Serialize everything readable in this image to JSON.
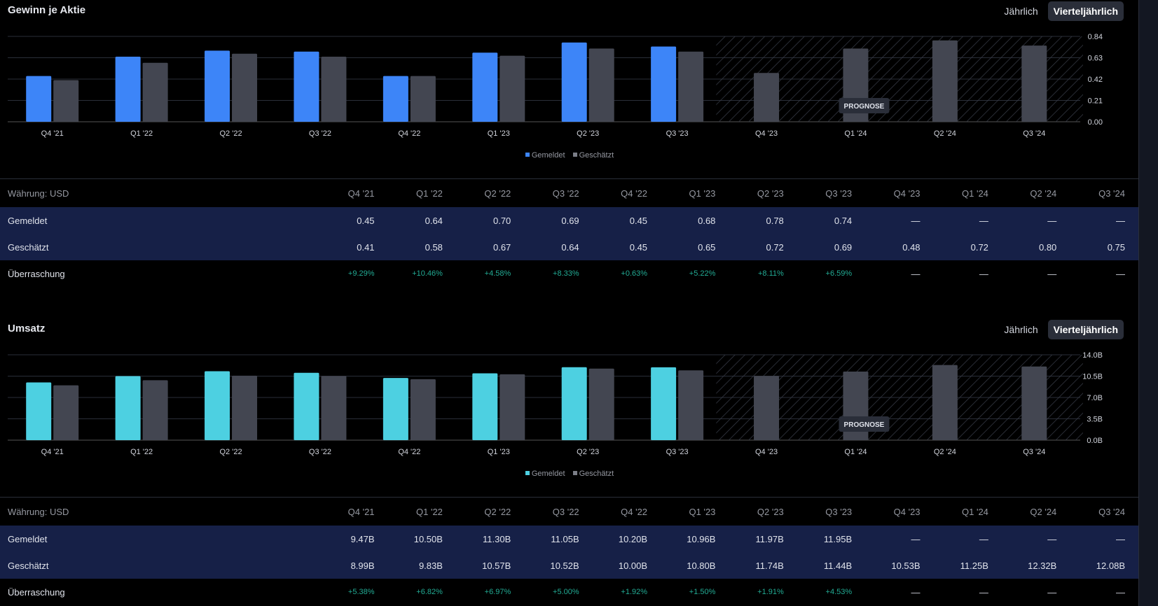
{
  "colors": {
    "reported_eps": "#3d85f8",
    "reported_rev": "#4dd0e1",
    "estimated": "#434651",
    "surprise": "#22ab94"
  },
  "common": {
    "periods": [
      "Q4 '21",
      "Q1 '22",
      "Q2 '22",
      "Q3 '22",
      "Q4 '22",
      "Q1 '23",
      "Q2 '23",
      "Q3 '23",
      "Q4 '23",
      "Q1 '24",
      "Q2 '24",
      "Q3 '24"
    ],
    "toggle_annual": "Jährlich",
    "toggle_quarterly": "Vierteljährlich",
    "legend_reported": "Gemeldet",
    "legend_estimated": "Geschätzt",
    "forecast_label": "PROGNOSE",
    "currency_label": "Währung: USD",
    "row_reported": "Gemeldet",
    "row_estimated": "Geschätzt",
    "row_surprise": "Überraschung"
  },
  "eps": {
    "title": "Gewinn je Aktie",
    "table": {
      "reported": [
        "0.45",
        "0.64",
        "0.70",
        "0.69",
        "0.45",
        "0.68",
        "0.78",
        "0.74",
        "—",
        "—",
        "—",
        "—"
      ],
      "estimated": [
        "0.41",
        "0.58",
        "0.67",
        "0.64",
        "0.45",
        "0.65",
        "0.72",
        "0.69",
        "0.48",
        "0.72",
        "0.80",
        "0.75"
      ],
      "surprise": [
        "+9.29%",
        "+10.46%",
        "+4.58%",
        "+8.33%",
        "+0.63%",
        "+5.22%",
        "+8.11%",
        "+6.59%",
        "—",
        "—",
        "—",
        "—"
      ]
    }
  },
  "revenue": {
    "title": "Umsatz",
    "table": {
      "reported": [
        "9.47B",
        "10.50B",
        "11.30B",
        "11.05B",
        "10.20B",
        "10.96B",
        "11.97B",
        "11.95B",
        "—",
        "—",
        "—",
        "—"
      ],
      "estimated": [
        "8.99B",
        "9.83B",
        "10.57B",
        "10.52B",
        "10.00B",
        "10.80B",
        "11.74B",
        "11.44B",
        "10.53B",
        "11.25B",
        "12.32B",
        "12.08B"
      ],
      "surprise": [
        "+5.38%",
        "+6.82%",
        "+6.97%",
        "+5.00%",
        "+1.92%",
        "+1.50%",
        "+1.91%",
        "+4.53%",
        "—",
        "—",
        "—",
        "—"
      ]
    }
  },
  "chart_data": [
    {
      "type": "bar",
      "title": "Gewinn je Aktie",
      "categories": [
        "Q4 '21",
        "Q1 '22",
        "Q2 '22",
        "Q3 '22",
        "Q4 '22",
        "Q1 '23",
        "Q2 '23",
        "Q3 '23",
        "Q4 '23",
        "Q1 '24",
        "Q2 '24",
        "Q3 '24"
      ],
      "series": [
        {
          "name": "Gemeldet",
          "values": [
            0.45,
            0.64,
            0.7,
            0.69,
            0.45,
            0.68,
            0.78,
            0.74,
            null,
            null,
            null,
            null
          ]
        },
        {
          "name": "Geschätzt",
          "values": [
            0.41,
            0.58,
            0.67,
            0.64,
            0.45,
            0.65,
            0.72,
            0.69,
            0.48,
            0.72,
            0.8,
            0.75
          ]
        }
      ],
      "yticks": [
        "0.00",
        "0.21",
        "0.42",
        "0.63",
        "0.84"
      ],
      "ylim": [
        0,
        0.84
      ],
      "forecast_start_index": 8,
      "grid": true,
      "legend": "bottom"
    },
    {
      "type": "bar",
      "title": "Umsatz",
      "categories": [
        "Q4 '21",
        "Q1 '22",
        "Q2 '22",
        "Q3 '22",
        "Q4 '22",
        "Q1 '23",
        "Q2 '23",
        "Q3 '23",
        "Q4 '23",
        "Q1 '24",
        "Q2 '24",
        "Q3 '24"
      ],
      "series": [
        {
          "name": "Gemeldet",
          "values": [
            9.47,
            10.5,
            11.3,
            11.05,
            10.2,
            10.96,
            11.97,
            11.95,
            null,
            null,
            null,
            null
          ]
        },
        {
          "name": "Geschätzt",
          "values": [
            8.99,
            9.83,
            10.57,
            10.52,
            10.0,
            10.8,
            11.74,
            11.44,
            10.53,
            11.25,
            12.32,
            12.08
          ]
        }
      ],
      "yticks": [
        "0.0B",
        "3.5B",
        "7.0B",
        "10.5B",
        "14.0B"
      ],
      "ylim": [
        0,
        14
      ],
      "forecast_start_index": 8,
      "grid": true,
      "legend": "bottom"
    }
  ]
}
